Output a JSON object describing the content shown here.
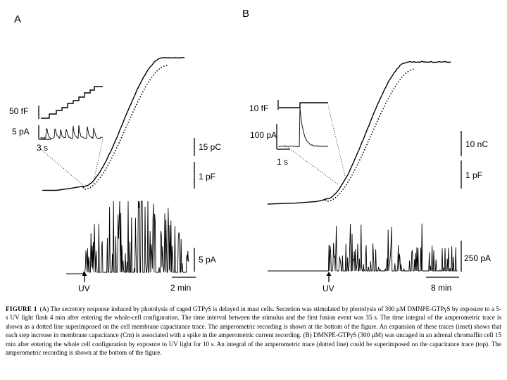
{
  "panels": [
    {
      "label": "A",
      "capacitance_scale": "1 pF",
      "charge_scale": "15 pC",
      "inset_capacitance_scale": "50 fF",
      "inset_current_scale": "5 pA",
      "inset_time_scale": "3 s",
      "amperometric_current_scale": "5 pA",
      "time_scale": "2 min",
      "stimulus_label": "UV"
    },
    {
      "label": "B",
      "capacitance_scale": "1 pF",
      "charge_scale": "10 nC",
      "inset_capacitance_scale": "10 fF",
      "inset_current_scale": "100 pA",
      "inset_time_scale": "1 s",
      "amperometric_current_scale": "250 pA",
      "time_scale": "8 min",
      "stimulus_label": "UV"
    }
  ],
  "caption": {
    "label": "FIGURE 1",
    "text": "(A) The secretory response induced by photolysis of caged GTPγS is delayed in mast cells. Secretion was stimulated by photolysis of 300 µM DMNPE-GTPγS by exposure to a 5-s UV light flash 4 min after entering the whole-cell configuration. The time interval between the stimulus and the first fusion event was 35 s. The time integral of the amperometric trace is shown as a dotted line superimposed on the cell membrane capacitance trace. The amperometric recording is shown at the bottom of the figure. An expansion of these traces (inset) shows that each step increase in membrane capacitance (Cm) is associated with a spike in the amperometric current recording. (B) DMNPE-GTPγS (300 µM) was uncaged in an adrenal chromaffin cell 15 min after entering the whole cell configuration by exposure to UV light for 10 s. An integral of the amperometric trace (dotted line) could be superimposed on the capacitance trace (top). The amperometric recording is shown at the bottom of the figure."
  }
}
